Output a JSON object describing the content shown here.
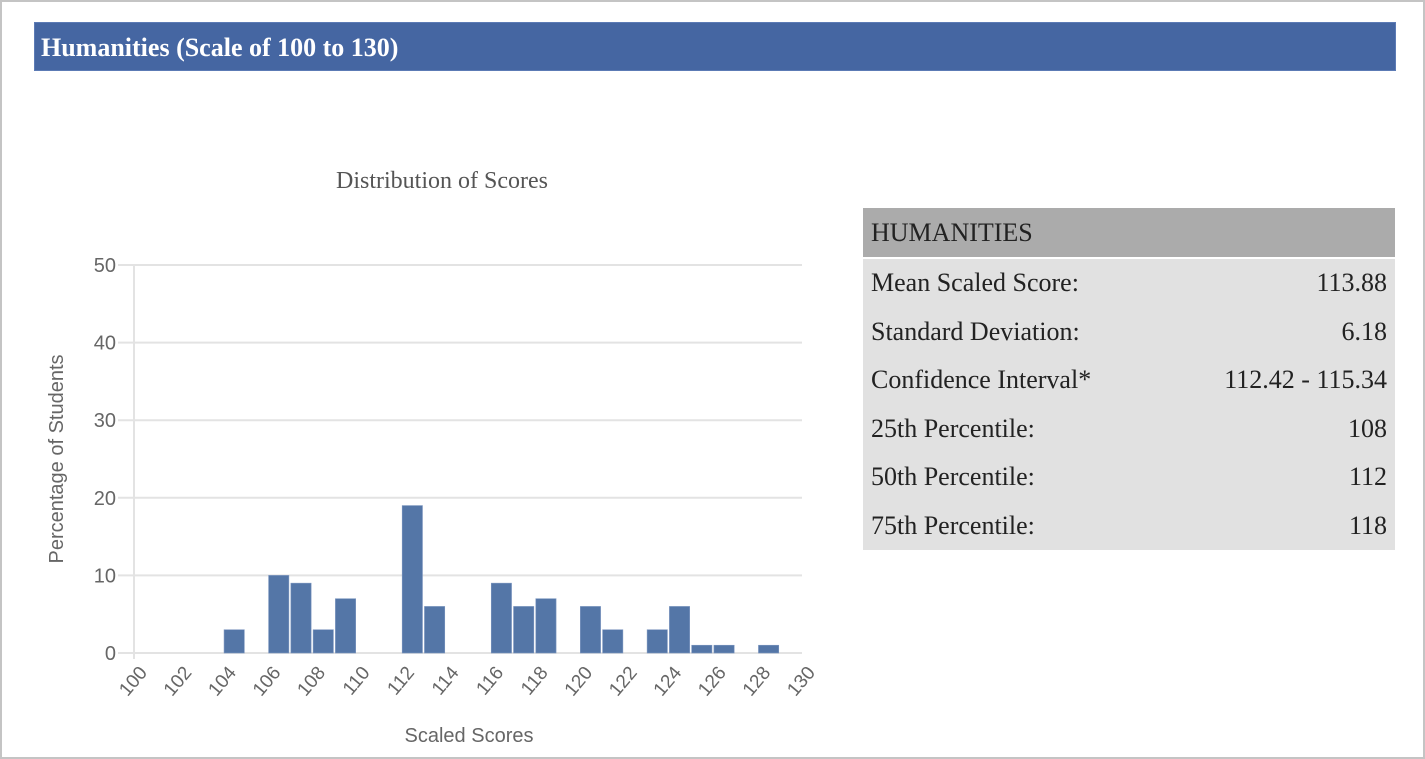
{
  "header": {
    "title": "Humanities (Scale of 100 to 130)",
    "bg_color": "#4566a2"
  },
  "stats": {
    "title": "HUMANITIES",
    "rows": [
      {
        "label": "Mean Scaled Score:",
        "value": "113.88"
      },
      {
        "label": "Standard Deviation:",
        "value": "6.18"
      },
      {
        "label": "Confidence Interval*",
        "value": "112.42 - 115.34"
      },
      {
        "label": "25th Percentile:",
        "value": "108"
      },
      {
        "label": "50th Percentile:",
        "value": "112"
      },
      {
        "label": "75th Percentile:",
        "value": "118"
      }
    ]
  },
  "chart_data": {
    "type": "bar",
    "title": "Distribution of Scores",
    "xlabel": "Scaled Scores",
    "ylabel": "Percentage of Students",
    "ylim": [
      0,
      50
    ],
    "yticks": [
      "0",
      "10",
      "20",
      "30",
      "40",
      "50"
    ],
    "xticks": [
      "100",
      "102",
      "104",
      "106",
      "108",
      "110",
      "112",
      "114",
      "116",
      "118",
      "120",
      "122",
      "124",
      "126",
      "128",
      "130"
    ],
    "grid": true,
    "legend": "none",
    "bar_color": "#5476a7",
    "categories": [
      100,
      101,
      102,
      103,
      104,
      105,
      106,
      107,
      108,
      109,
      110,
      111,
      112,
      113,
      114,
      115,
      116,
      117,
      118,
      119,
      120,
      121,
      122,
      123,
      124,
      125,
      126,
      127,
      128,
      129
    ],
    "values": [
      0,
      0,
      0,
      0,
      3,
      0,
      10,
      9,
      3,
      7,
      0,
      0,
      19,
      6,
      0,
      0,
      9,
      6,
      7,
      0,
      6,
      3,
      0,
      3,
      6,
      1,
      1,
      0,
      1,
      0
    ]
  }
}
